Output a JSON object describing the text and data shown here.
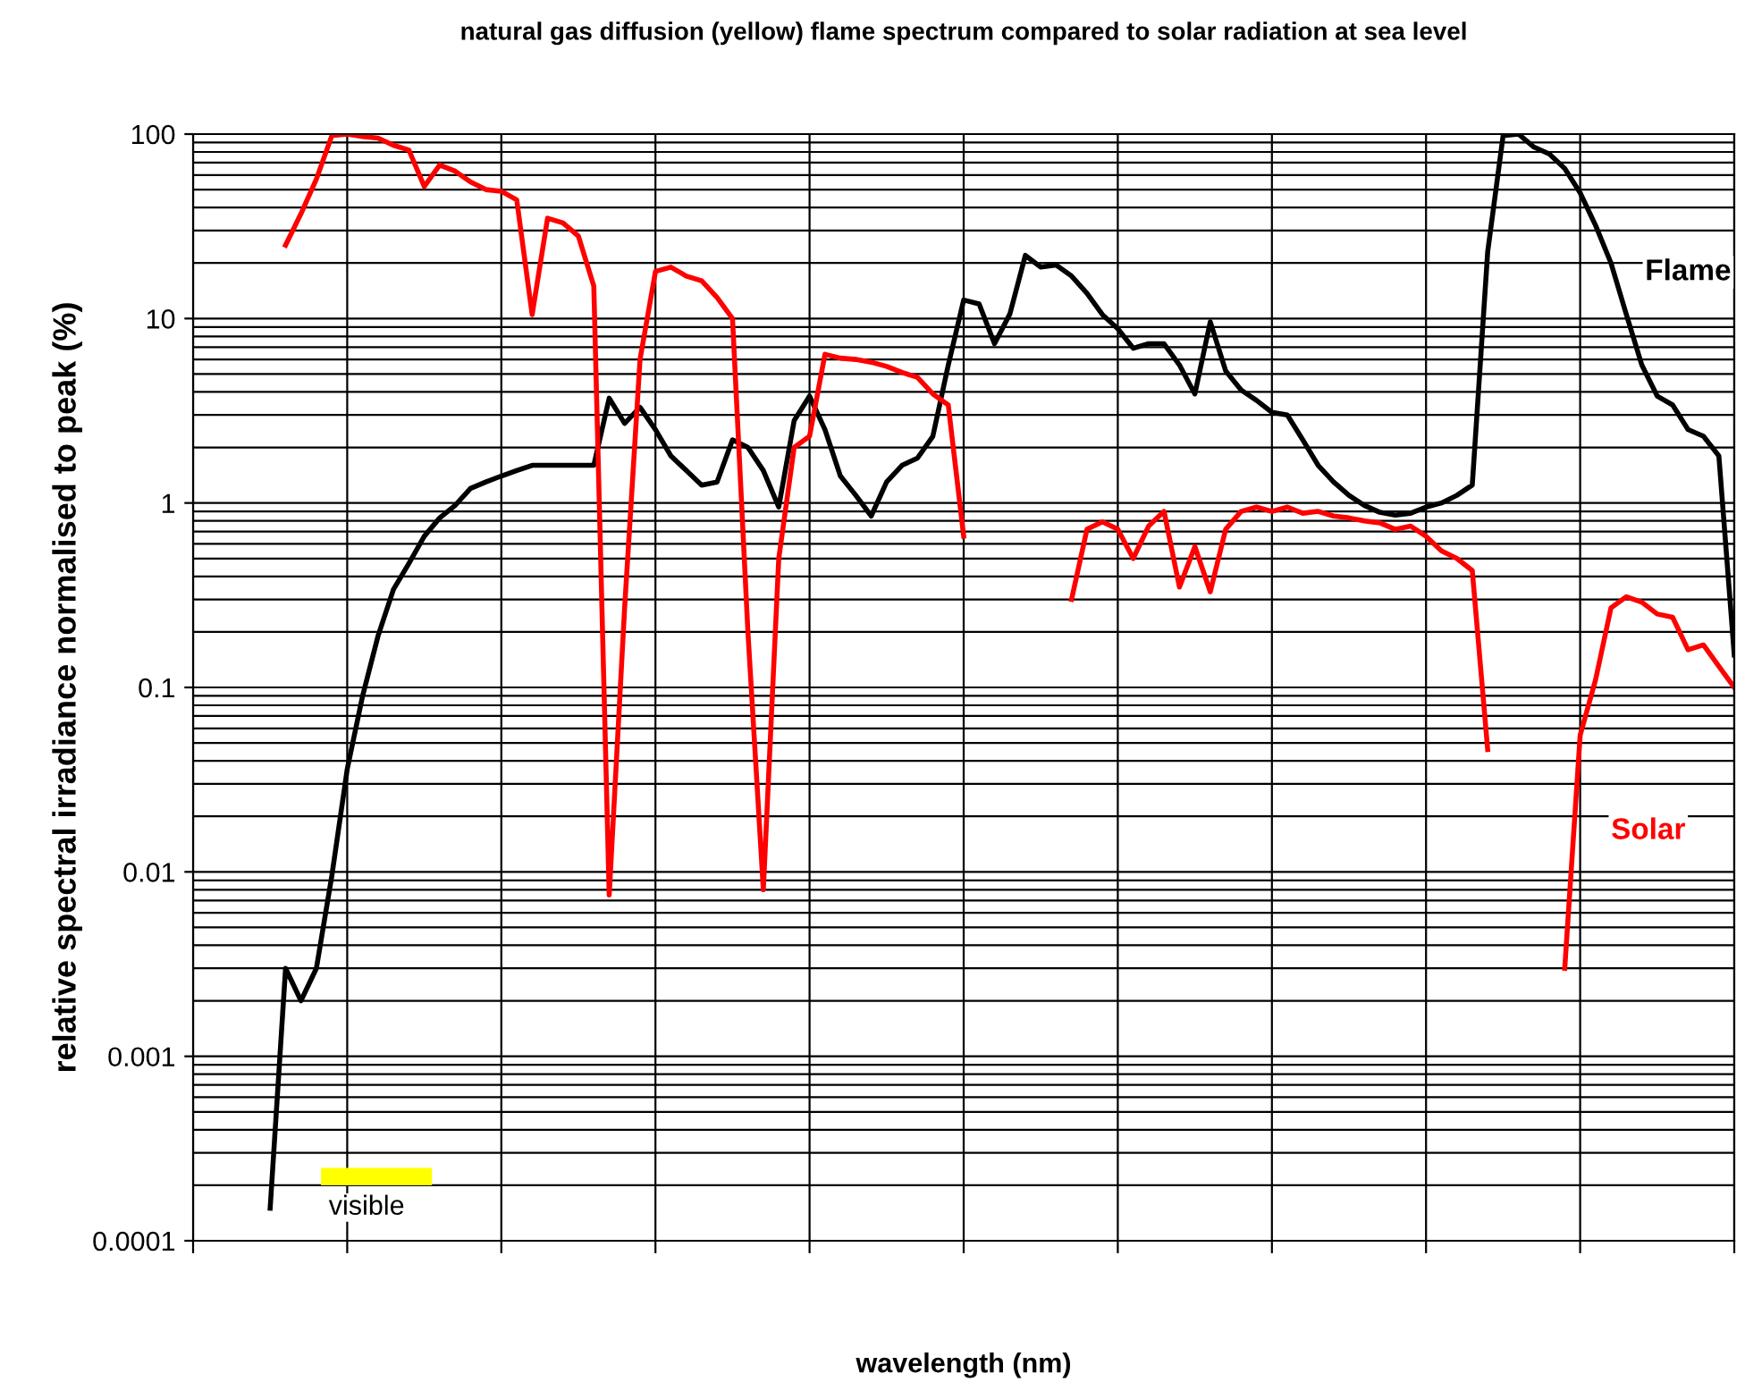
{
  "chart_data": {
    "type": "line",
    "title": "natural gas diffusion (yellow) flame spectrum compared to solar radiation at sea level",
    "xlabel": "wavelength (nm)",
    "ylabel": "relative spectral irradiance normalised to peak (%)",
    "categories": [
      null,
      null,
      null,
      null,
      null,
      null,
      null,
      null,
      null,
      null,
      null,
      null,
      null,
      null,
      null,
      null,
      null,
      null,
      null,
      null,
      null,
      null,
      null,
      null,
      null,
      null,
      null,
      null,
      null,
      null,
      null,
      null,
      null,
      null,
      null,
      null,
      null,
      null,
      null,
      null,
      null,
      null,
      null,
      null,
      null,
      null,
      null,
      null,
      null,
      null,
      null,
      null,
      null,
      null,
      null,
      null,
      null,
      null,
      null,
      null,
      null,
      null,
      null,
      null,
      null,
      null,
      null,
      null,
      null,
      null,
      null,
      null,
      null,
      null,
      null,
      null,
      null,
      null,
      null,
      null,
      null,
      null,
      null,
      null,
      null,
      null,
      null,
      null,
      null,
      null,
      null,
      null,
      null,
      null,
      null,
      null,
      null,
      null,
      null,
      null,
      null
    ],
    "series": [
      {
        "name": "Flame",
        "color": "#000000",
        "values": [
          null,
          null,
          null,
          null,
          null,
          0.00015,
          0.003,
          0.002,
          0.003,
          0.0095,
          0.036,
          0.09,
          0.19,
          0.34,
          0.47,
          0.66,
          0.83,
          0.97,
          1.2,
          1.3,
          1.4,
          1.5,
          1.6,
          1.6,
          1.6,
          1.6,
          1.6,
          3.7,
          2.7,
          3.3,
          2.5,
          1.8,
          1.5,
          1.25,
          1.3,
          2.2,
          2.0,
          1.5,
          0.95,
          2.8,
          3.8,
          2.5,
          1.4,
          1.1,
          0.85,
          1.3,
          1.6,
          1.75,
          2.3,
          5.6,
          12.6,
          12,
          7.3,
          10.6,
          22,
          19,
          19.5,
          17,
          13.7,
          10.5,
          8.8,
          6.9,
          7.3,
          7.3,
          5.6,
          3.9,
          9.6,
          5.2,
          4.1,
          3.6,
          3.1,
          3.0,
          2.2,
          1.6,
          1.3,
          1.1,
          0.97,
          0.89,
          0.86,
          0.88,
          0.95,
          1.0,
          1.1,
          1.25,
          23,
          98,
          100,
          85,
          78,
          65,
          48,
          32,
          20,
          10.5,
          5.6,
          3.8,
          3.4,
          2.5,
          2.3,
          1.8,
          0.15
        ]
      },
      {
        "name": "Solar",
        "color": "#ff0000",
        "values": [
          null,
          null,
          null,
          null,
          null,
          null,
          25,
          37,
          57,
          98,
          100,
          97,
          95,
          87,
          82,
          52,
          68,
          63,
          55,
          50,
          49,
          44,
          10.5,
          35,
          33,
          28,
          15,
          0.0075,
          0.27,
          6,
          18,
          19,
          17,
          16,
          13,
          10,
          0.2,
          0.008,
          0.5,
          2,
          2.3,
          6.4,
          6.1,
          6,
          5.8,
          5.5,
          5.1,
          4.8,
          3.9,
          3.4,
          0.66,
          null,
          null,
          null,
          null,
          null,
          null,
          0.3,
          0.72,
          0.79,
          0.72,
          0.5,
          0.75,
          0.9,
          0.35,
          0.58,
          0.33,
          0.72,
          0.9,
          0.95,
          0.9,
          0.95,
          0.88,
          0.9,
          0.85,
          0.83,
          0.8,
          0.78,
          0.72,
          0.75,
          0.66,
          0.55,
          0.5,
          0.43,
          0.046,
          null,
          null,
          null,
          null,
          0.003,
          0.055,
          0.11,
          0.27,
          0.31,
          0.29,
          0.25,
          0.24,
          0.16,
          0.17,
          0.13,
          0.1
        ]
      }
    ],
    "log": "y",
    "ylim": [
      0.0001,
      100
    ],
    "yticks": [
      0.0001,
      0.001,
      0.01,
      0.1,
      1,
      10,
      100
    ],
    "grid": true,
    "legend": false,
    "tick_labels": "y",
    "line_style": "solid",
    "marker": "none",
    "annotations": [
      "visible"
    ]
  }
}
